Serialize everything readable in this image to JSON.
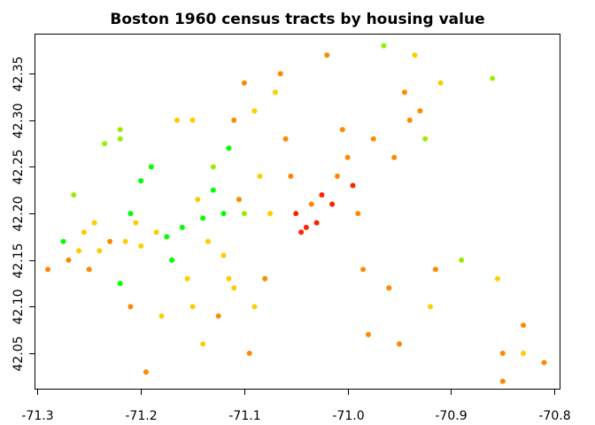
{
  "chart_data": {
    "type": "scatter",
    "title": "Boston 1960 census tracts by housing value",
    "xlabel": "",
    "ylabel": "",
    "xlim": [
      -71.302,
      -70.795
    ],
    "ylim": [
      42.012,
      42.392
    ],
    "x_ticks": [
      -71.3,
      -71.2,
      -71.1,
      -71.0,
      -70.9,
      -70.8
    ],
    "x_tick_labels": [
      "-71.3",
      "-71.2",
      "-71.1",
      "-71.0",
      "-70.9",
      "-70.8"
    ],
    "y_ticks": [
      42.05,
      42.1,
      42.15,
      42.2,
      42.25,
      42.3,
      42.35
    ],
    "y_tick_labels": [
      "42.05",
      "42.10",
      "42.15",
      "42.20",
      "42.25",
      "42.30",
      "42.35"
    ],
    "grid": false,
    "legend": "none",
    "colors": {
      "green": "#00ff00",
      "lime": "#99ee00",
      "yellow": "#ffcc00",
      "orange": "#ff8800",
      "red": "#ff2200"
    },
    "points": [
      [
        -71.29,
        42.14,
        "orange"
      ],
      [
        -71.275,
        42.17,
        "green"
      ],
      [
        -71.27,
        42.15,
        "orange"
      ],
      [
        -71.265,
        42.22,
        "lime"
      ],
      [
        -71.26,
        42.16,
        "yellow"
      ],
      [
        -71.255,
        42.18,
        "yellow"
      ],
      [
        -71.25,
        42.14,
        "orange"
      ],
      [
        -71.245,
        42.19,
        "yellow"
      ],
      [
        -71.24,
        42.16,
        "yellow"
      ],
      [
        -71.235,
        42.275,
        "lime"
      ],
      [
        -71.23,
        42.17,
        "orange"
      ],
      [
        -71.22,
        42.29,
        "lime"
      ],
      [
        -71.22,
        42.28,
        "lime"
      ],
      [
        -71.22,
        42.125,
        "green"
      ],
      [
        -71.215,
        42.17,
        "yellow"
      ],
      [
        -71.21,
        42.2,
        "green"
      ],
      [
        -71.21,
        42.1,
        "orange"
      ],
      [
        -71.205,
        42.19,
        "yellow"
      ],
      [
        -71.2,
        42.165,
        "yellow"
      ],
      [
        -71.2,
        42.235,
        "green"
      ],
      [
        -71.195,
        42.03,
        "orange"
      ],
      [
        -71.19,
        42.25,
        "green"
      ],
      [
        -71.185,
        42.18,
        "yellow"
      ],
      [
        -71.18,
        42.09,
        "yellow"
      ],
      [
        -71.175,
        42.175,
        "green"
      ],
      [
        -71.17,
        42.15,
        "green"
      ],
      [
        -71.165,
        42.3,
        "yellow"
      ],
      [
        -71.16,
        42.185,
        "green"
      ],
      [
        -71.155,
        42.13,
        "yellow"
      ],
      [
        -71.15,
        42.1,
        "yellow"
      ],
      [
        -71.15,
        42.3,
        "yellow"
      ],
      [
        -71.145,
        42.215,
        "yellow"
      ],
      [
        -71.14,
        42.195,
        "green"
      ],
      [
        -71.14,
        42.06,
        "yellow"
      ],
      [
        -71.135,
        42.17,
        "yellow"
      ],
      [
        -71.13,
        42.25,
        "lime"
      ],
      [
        -71.13,
        42.225,
        "green"
      ],
      [
        -71.125,
        42.09,
        "orange"
      ],
      [
        -71.12,
        42.155,
        "yellow"
      ],
      [
        -71.12,
        42.2,
        "green"
      ],
      [
        -71.115,
        42.27,
        "green"
      ],
      [
        -71.115,
        42.13,
        "yellow"
      ],
      [
        -71.11,
        42.12,
        "yellow"
      ],
      [
        -71.11,
        42.3,
        "orange"
      ],
      [
        -71.105,
        42.215,
        "orange"
      ],
      [
        -71.1,
        42.34,
        "orange"
      ],
      [
        -71.1,
        42.2,
        "lime"
      ],
      [
        -71.095,
        42.05,
        "orange"
      ],
      [
        -71.09,
        42.31,
        "yellow"
      ],
      [
        -71.09,
        42.1,
        "yellow"
      ],
      [
        -71.085,
        42.24,
        "yellow"
      ],
      [
        -71.08,
        42.13,
        "orange"
      ],
      [
        -71.075,
        42.2,
        "yellow"
      ],
      [
        -71.07,
        42.33,
        "yellow"
      ],
      [
        -71.065,
        42.35,
        "orange"
      ],
      [
        -71.06,
        42.28,
        "orange"
      ],
      [
        -71.055,
        42.24,
        "orange"
      ],
      [
        -71.05,
        42.2,
        "red"
      ],
      [
        -71.045,
        42.18,
        "red"
      ],
      [
        -71.04,
        42.185,
        "red"
      ],
      [
        -71.035,
        42.21,
        "orange"
      ],
      [
        -71.03,
        42.19,
        "red"
      ],
      [
        -71.025,
        42.22,
        "red"
      ],
      [
        -71.02,
        42.37,
        "orange"
      ],
      [
        -71.015,
        42.21,
        "red"
      ],
      [
        -71.01,
        42.24,
        "orange"
      ],
      [
        -71.005,
        42.29,
        "orange"
      ],
      [
        -71.0,
        42.26,
        "orange"
      ],
      [
        -70.995,
        42.23,
        "red"
      ],
      [
        -70.99,
        42.2,
        "orange"
      ],
      [
        -70.985,
        42.14,
        "orange"
      ],
      [
        -70.98,
        42.07,
        "orange"
      ],
      [
        -70.975,
        42.28,
        "orange"
      ],
      [
        -70.965,
        42.38,
        "lime"
      ],
      [
        -70.96,
        42.12,
        "orange"
      ],
      [
        -70.955,
        42.26,
        "orange"
      ],
      [
        -70.95,
        42.06,
        "orange"
      ],
      [
        -70.945,
        42.33,
        "orange"
      ],
      [
        -70.94,
        42.3,
        "orange"
      ],
      [
        -70.935,
        42.37,
        "yellow"
      ],
      [
        -70.93,
        42.31,
        "orange"
      ],
      [
        -70.925,
        42.28,
        "lime"
      ],
      [
        -70.92,
        42.1,
        "yellow"
      ],
      [
        -70.915,
        42.14,
        "orange"
      ],
      [
        -70.91,
        42.34,
        "yellow"
      ],
      [
        -70.89,
        42.15,
        "lime"
      ],
      [
        -70.86,
        42.345,
        "lime"
      ],
      [
        -70.855,
        42.13,
        "yellow"
      ],
      [
        -70.85,
        42.05,
        "orange"
      ],
      [
        -70.85,
        42.02,
        "orange"
      ],
      [
        -70.83,
        42.08,
        "orange"
      ],
      [
        -70.83,
        42.05,
        "yellow"
      ],
      [
        -70.81,
        42.04,
        "orange"
      ]
    ]
  }
}
